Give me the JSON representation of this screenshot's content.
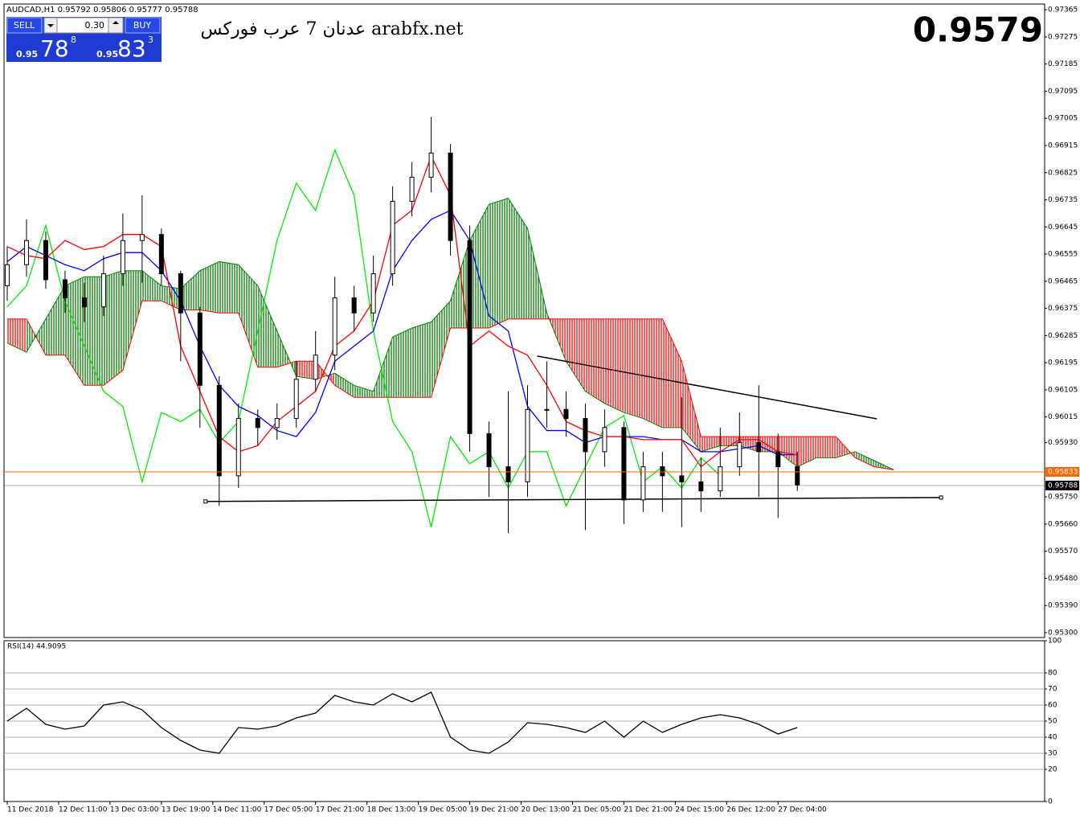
{
  "header": {
    "symbol": "AUDCAD,H1  0.95792 0.95806 0.95777 0.95788"
  },
  "trade_panel": {
    "sell": "SELL",
    "buy": "BUY",
    "lot": "0.30",
    "sell_price": {
      "big": "0.95",
      "pips": "78",
      "frac": "8"
    },
    "buy_price": {
      "big": "0.95",
      "pips": "83",
      "frac": "3"
    }
  },
  "watermark": "عدنان 7 عرب فوركس arabfx.net",
  "price_display": "0.9579",
  "chart_data": [
    {
      "type": "candlestick",
      "xlim": [
        -1,
        323
      ],
      "ylim": [
        0.95284,
        0.97384
      ],
      "xticks": [
        {
          "value": 0,
          "label": "11 Dec 2018"
        },
        {
          "value": 16,
          "label": "12 Dec 11:00"
        },
        {
          "value": 32,
          "label": "13 Dec 03:00"
        },
        {
          "value": 48,
          "label": "13 Dec 19:00"
        },
        {
          "value": 64,
          "label": "14 Dec 11:00"
        },
        {
          "value": 80,
          "label": "17 Dec 05:00"
        },
        {
          "value": 96,
          "label": "17 Dec 21:00"
        },
        {
          "value": 112,
          "label": "18 Dec 13:00"
        },
        {
          "value": 128,
          "label": "19 Dec 05:00"
        },
        {
          "value": 144,
          "label": "19 Dec 21:00"
        },
        {
          "value": 160,
          "label": "20 Dec 13:00"
        },
        {
          "value": 176,
          "label": "21 Dec 05:00"
        },
        {
          "value": 192,
          "label": "21 Dec 21:00"
        },
        {
          "value": 208,
          "label": "24 Dec 15:00"
        },
        {
          "value": 224,
          "label": "26 Dec 12:00"
        },
        {
          "value": 240,
          "label": "27 Dec 04:00"
        }
      ],
      "yticks": [
        0.97365,
        0.97275,
        0.97185,
        0.97095,
        0.97005,
        0.96915,
        0.96825,
        0.96735,
        0.96645,
        0.96555,
        0.96465,
        0.96375,
        0.96285,
        0.96195,
        0.96105,
        0.96015,
        {
          "value": 0.9593,
          "label": "0.95930"
        },
        {
          "value": 0.9575,
          "label": "0.95750"
        },
        {
          "value": 0.9566,
          "label": "0.95660"
        },
        {
          "value": 0.9557,
          "label": "0.95570"
        },
        {
          "value": 0.9548,
          "label": "0.95480"
        },
        {
          "value": 0.9539,
          "label": "0.95390"
        },
        {
          "value": 0.953,
          "label": "0.95300"
        }
      ],
      "x": [
        0,
        6,
        12,
        18,
        24,
        30,
        36,
        42,
        48,
        54,
        60,
        66,
        72,
        78,
        84,
        90,
        96,
        102,
        108,
        114,
        120,
        126,
        132,
        138,
        144,
        150,
        156,
        162,
        168,
        174,
        180,
        186,
        192,
        198,
        204,
        210,
        216,
        222,
        228,
        234,
        240,
        246
      ],
      "open": [
        0.9645,
        0.9652,
        0.966,
        0.9647,
        0.9641,
        0.9638,
        0.9649,
        0.966,
        0.9662,
        0.9649,
        0.9636,
        0.9612,
        0.9582,
        0.9601,
        0.9598,
        0.9601,
        0.9614,
        0.9622,
        0.9641,
        0.9636,
        0.9649,
        0.9673,
        0.9681,
        0.9689,
        0.966,
        0.9596,
        0.9585,
        0.958,
        0.9604,
        0.9604,
        0.9601,
        0.959,
        0.9598,
        0.9574,
        0.9585,
        0.9582,
        0.958,
        0.9577,
        0.9585,
        0.9593,
        0.959,
        0.9585
      ],
      "high": [
        0.9658,
        0.9667,
        0.9663,
        0.965,
        0.9646,
        0.9655,
        0.9669,
        0.9675,
        0.9664,
        0.965,
        0.9638,
        0.9615,
        0.9606,
        0.9604,
        0.9606,
        0.962,
        0.963,
        0.9648,
        0.9645,
        0.9655,
        0.9678,
        0.9686,
        0.9701,
        0.9692,
        0.9665,
        0.96,
        0.961,
        0.9612,
        0.962,
        0.961,
        0.9606,
        0.9604,
        0.96,
        0.959,
        0.959,
        0.9608,
        0.9588,
        0.9598,
        0.9603,
        0.9612,
        0.9596,
        0.959
      ],
      "low": [
        0.964,
        0.9648,
        0.9644,
        0.9636,
        0.9633,
        0.9635,
        0.9645,
        0.9646,
        0.9645,
        0.962,
        0.9598,
        0.9572,
        0.9578,
        0.9592,
        0.9594,
        0.9598,
        0.961,
        0.9617,
        0.963,
        0.9633,
        0.9645,
        0.9668,
        0.9676,
        0.9655,
        0.959,
        0.9575,
        0.9563,
        0.9575,
        0.9598,
        0.9595,
        0.9564,
        0.9585,
        0.9566,
        0.957,
        0.957,
        0.9565,
        0.957,
        0.9575,
        0.9582,
        0.9575,
        0.9568,
        0.9577
      ],
      "close": [
        0.9652,
        0.966,
        0.9647,
        0.9641,
        0.9638,
        0.9649,
        0.966,
        0.9662,
        0.9649,
        0.9636,
        0.9612,
        0.9582,
        0.9601,
        0.9598,
        0.9601,
        0.9614,
        0.9622,
        0.9641,
        0.9636,
        0.9649,
        0.9673,
        0.9681,
        0.9689,
        0.966,
        0.9596,
        0.9585,
        0.958,
        0.9604,
        0.9604,
        0.9601,
        0.959,
        0.9598,
        0.9574,
        0.9585,
        0.9582,
        0.958,
        0.9577,
        0.9585,
        0.9593,
        0.959,
        0.9585,
        0.9579
      ],
      "candle_color": "#000000",
      "series": [
        {
          "color": "#0000ff",
          "values": [
            0.9653,
            0.9658,
            0.9655,
            0.9652,
            0.965,
            0.9654,
            0.9656,
            0.9656,
            0.965,
            0.964,
            0.9625,
            0.9612,
            0.9605,
            0.9602,
            0.9597,
            0.9595,
            0.9603,
            0.962,
            0.9625,
            0.963,
            0.965,
            0.966,
            0.9667,
            0.967,
            0.966,
            0.9635,
            0.963,
            0.9605,
            0.9597,
            0.9597,
            0.9593,
            0.9595,
            0.9595,
            0.9595,
            0.9594,
            0.9594,
            0.959,
            0.959,
            0.9591,
            0.9592,
            0.9589,
            0.9589
          ]
        },
        {
          "color": "#ff0000",
          "values": [
            0.9658,
            0.9655,
            0.9654,
            0.966,
            0.9657,
            0.9658,
            0.9662,
            0.9662,
            0.9658,
            0.9625,
            0.961,
            0.9595,
            0.959,
            0.9592,
            0.96,
            0.9605,
            0.961,
            0.9625,
            0.963,
            0.964,
            0.9665,
            0.967,
            0.9688,
            0.9675,
            0.9625,
            0.963,
            0.9625,
            0.9622,
            0.9612,
            0.96,
            0.9597,
            0.9595,
            0.9595,
            0.9594,
            0.9594,
            0.9594,
            0.9585,
            0.959,
            0.9594,
            0.9594,
            0.959,
            0.9589
          ]
        }
      ],
      "chikou": {
        "color": "#00ee00",
        "x": [
          0,
          6,
          12,
          18,
          24,
          30,
          36,
          42,
          48,
          54,
          60,
          66,
          72,
          78,
          84,
          90,
          96,
          102,
          108,
          114,
          120,
          126,
          132,
          138,
          144,
          150,
          156,
          162,
          168,
          174,
          180,
          186,
          192,
          198,
          204,
          210,
          216,
          222
        ],
        "values": [
          0.9638,
          0.9645,
          0.9665,
          0.964,
          0.9625,
          0.961,
          0.9605,
          0.958,
          0.9603,
          0.96,
          0.9604,
          0.9593,
          0.96,
          0.963,
          0.966,
          0.9679,
          0.967,
          0.969,
          0.9675,
          0.963,
          0.96,
          0.959,
          0.9565,
          0.9595,
          0.9586,
          0.959,
          0.9578,
          0.959,
          0.959,
          0.9572,
          0.9585,
          0.9598,
          0.9602,
          0.958,
          0.9585,
          0.9578,
          0.9588,
          0.9582
        ]
      },
      "cloud": {
        "up_color": "#008000",
        "down_color": "#ff0000",
        "x": [
          0,
          6,
          12,
          18,
          24,
          30,
          36,
          42,
          48,
          54,
          60,
          66,
          72,
          78,
          84,
          90,
          96,
          102,
          108,
          114,
          120,
          126,
          132,
          138,
          144,
          150,
          156,
          162,
          168,
          174,
          180,
          186,
          192,
          198,
          204,
          210,
          216,
          222,
          228,
          234,
          240,
          246,
          252,
          258,
          264,
          270,
          276
        ],
        "span_a": [
          0.9626,
          0.9623,
          0.9634,
          0.9645,
          0.9648,
          0.9648,
          0.965,
          0.965,
          0.9645,
          0.9644,
          0.965,
          0.9653,
          0.9652,
          0.9645,
          0.963,
          0.9615,
          0.9614,
          0.9616,
          0.9612,
          0.961,
          0.9628,
          0.9631,
          0.9633,
          0.964,
          0.966,
          0.9672,
          0.9674,
          0.9664,
          0.9636,
          0.962,
          0.961,
          0.9606,
          0.9603,
          0.9601,
          0.9598,
          0.9598,
          0.959,
          0.9592,
          0.9592,
          0.959,
          0.959,
          0.9585,
          0.9588,
          0.9588,
          0.959,
          0.9587,
          0.9584
        ],
        "span_b": [
          0.9634,
          0.9634,
          0.9622,
          0.9622,
          0.9612,
          0.9612,
          0.9617,
          0.964,
          0.964,
          0.9637,
          0.9637,
          0.9636,
          0.9636,
          0.9618,
          0.9618,
          0.962,
          0.962,
          0.9612,
          0.9608,
          0.9608,
          0.9608,
          0.9608,
          0.9608,
          0.9631,
          0.9631,
          0.9631,
          0.9634,
          0.9634,
          0.9634,
          0.9634,
          0.9634,
          0.9634,
          0.9634,
          0.9634,
          0.9634,
          0.962,
          0.9595,
          0.9595,
          0.9595,
          0.9595,
          0.9595,
          0.9595,
          0.9595,
          0.9595,
          0.9588,
          0.9585,
          0.9584
        ]
      },
      "trendlines": [
        {
          "color": "#000000",
          "x": [
            165,
            270.75
          ],
          "y": [
            0.96217,
            0.96009
          ]
        },
        {
          "color": "#000000",
          "x": [
            61.75,
            290.75
          ],
          "y": [
            0.95735,
            0.95748
          ]
        }
      ],
      "price_lines": [
        {
          "value": 0.95833,
          "color": "#ff6600"
        },
        {
          "value": 0.95788,
          "color": "#000000"
        }
      ]
    },
    {
      "type": "line",
      "title": "RSI(14) 44.9095",
      "ylim": [
        0,
        100
      ],
      "yticks": [
        100,
        80,
        70,
        60,
        50,
        40,
        30,
        20,
        0
      ],
      "levels": [
        80,
        70,
        60,
        50,
        40,
        30,
        20
      ],
      "color": "#000000",
      "values": [
        50,
        58,
        48,
        45,
        47,
        60,
        62,
        57,
        46,
        38,
        32,
        30,
        46,
        45,
        47,
        52,
        55,
        66,
        62,
        60,
        67,
        62,
        68,
        40,
        32,
        30,
        37,
        49,
        48,
        46,
        43,
        50,
        40,
        50,
        43,
        48,
        52,
        54,
        52,
        48,
        42,
        46
      ]
    }
  ]
}
